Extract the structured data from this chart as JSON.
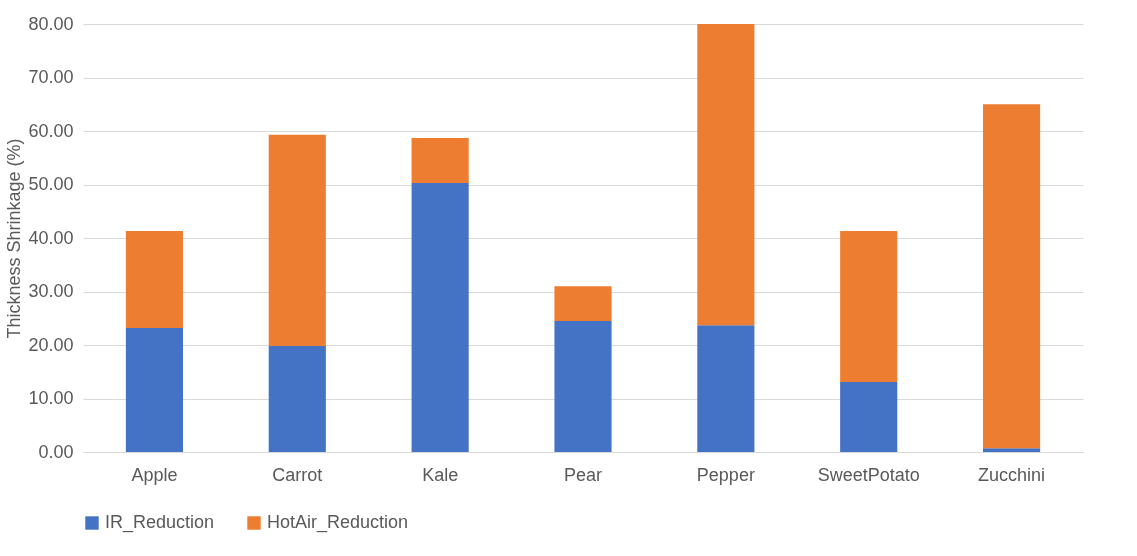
{
  "chart_data": {
    "type": "bar",
    "ylabel": "Thickness Shrinkage (%)",
    "stacked": true,
    "categories": [
      "Apple",
      "Carrot",
      "Kale",
      "Pear",
      "Pepper",
      "SweetPotato",
      "Zucchini"
    ],
    "series": [
      {
        "name": "IR_Reduction",
        "color": "#4472c4",
        "values": [
          23.2,
          19.8,
          50.3,
          24.5,
          23.7,
          13.1,
          0.7
        ]
      },
      {
        "name": "HotAir_Reduction",
        "color": "#ed7d31",
        "values": [
          18.1,
          39.5,
          8.4,
          6.5,
          56.3,
          28.2,
          64.3
        ]
      }
    ],
    "ylim": [
      0,
      80
    ],
    "yticks": [
      {
        "value": 0,
        "label": "0.00"
      },
      {
        "value": 10,
        "label": "10.00"
      },
      {
        "value": 20,
        "label": "20.00"
      },
      {
        "value": 30,
        "label": "30.00"
      },
      {
        "value": 40,
        "label": "40.00"
      },
      {
        "value": 50,
        "label": "50.00"
      },
      {
        "value": 60,
        "label": "60.00"
      },
      {
        "value": 70,
        "label": "70.00"
      },
      {
        "value": 80,
        "label": "80.00"
      }
    ],
    "grid": "y",
    "legend": "bottom"
  }
}
